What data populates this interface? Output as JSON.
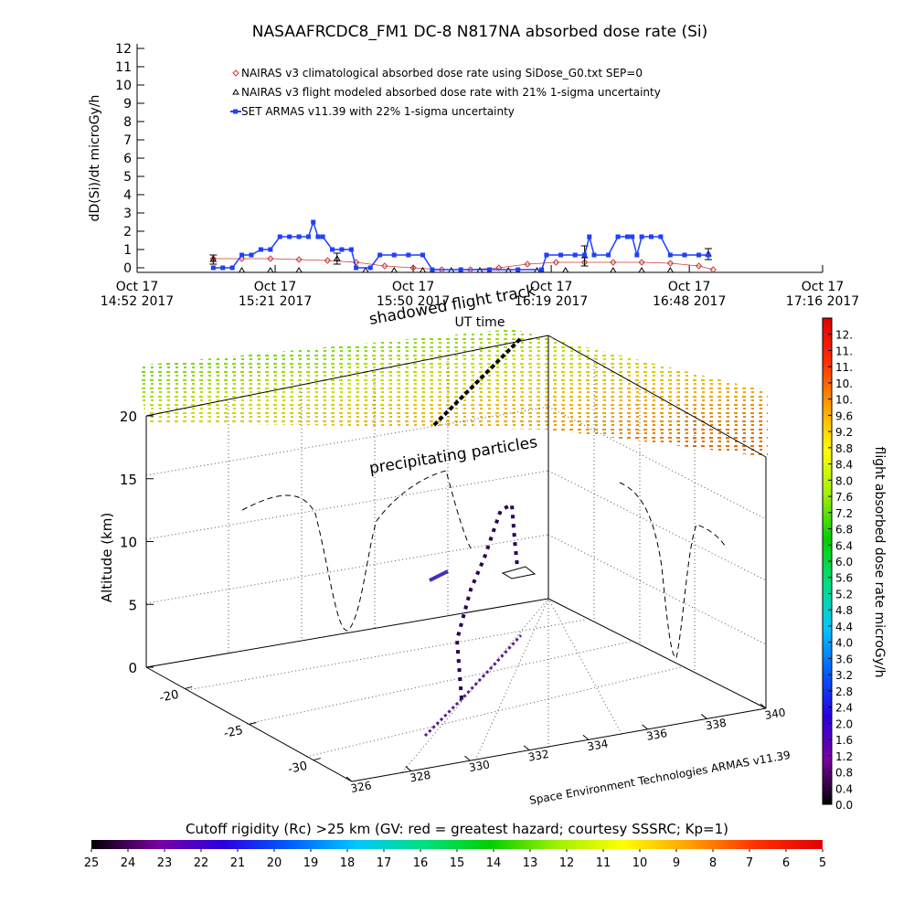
{
  "chart_data": [
    {
      "type": "line",
      "title": "NASAAFRCDC8_FM1 DC-8   N817NA absorbed dose rate (Si)",
      "ylabel": "dD(Si)/dt microGy/h",
      "xlabel": "UT time",
      "xlim": [
        "14:52",
        "17:16"
      ],
      "xticks": [
        {
          "value": "14:52",
          "label": "Oct 17\n14:52 2017"
        },
        {
          "value": "15:21",
          "label": "Oct 17\n15:21 2017"
        },
        {
          "value": "15:50",
          "label": "Oct 17\n15:50 2017"
        },
        {
          "value": "16:19",
          "label": "Oct 17\n16:19 2017"
        },
        {
          "value": "16:48",
          "label": "Oct 17\n16:48 2017"
        },
        {
          "value": "17:16",
          "label": "Oct 17\n17:16 2017"
        }
      ],
      "ylim": [
        -0.25,
        12.25
      ],
      "yticks": [
        0,
        1,
        2,
        3,
        4,
        5,
        6,
        7,
        8,
        9,
        10,
        11,
        12
      ],
      "series": [
        {
          "name": "NAIRAS v3 climatological absorbed dose rate using SiDose_G0.txt SEP=0",
          "color": "#c83c3c",
          "marker": "diamond",
          "line": true,
          "x": [
            "15:08",
            "15:14",
            "15:20",
            "15:26",
            "15:32",
            "15:38",
            "15:44",
            "15:50",
            "15:56",
            "16:02",
            "16:08",
            "16:14",
            "16:20",
            "16:26",
            "16:32",
            "16:38",
            "16:44",
            "16:50",
            "16:53"
          ],
          "values": [
            0.5,
            0.5,
            0.5,
            0.45,
            0.4,
            0.3,
            0.1,
            0,
            -0.1,
            -0.1,
            0,
            0.2,
            0.3,
            0.3,
            0.3,
            0.3,
            0.25,
            0.1,
            -0.1
          ]
        },
        {
          "name": "NAIRAS v3 flight modeled absorbed dose rate with 21% 1-sigma uncertainty",
          "color": "#000000",
          "marker": "triangle",
          "line": false,
          "x": [
            "15:08",
            "15:14",
            "15:20",
            "15:26",
            "15:34",
            "15:40",
            "15:46",
            "15:52",
            "15:58",
            "16:04",
            "16:10",
            "16:16",
            "16:22",
            "16:26",
            "16:32",
            "16:38",
            "16:44",
            "16:52"
          ],
          "values": [
            0.45,
            -0.15,
            -0.15,
            -0.15,
            0.5,
            -0.15,
            -0.15,
            -0.15,
            -0.15,
            -0.15,
            -0.15,
            -0.15,
            -0.15,
            0.65,
            -0.15,
            -0.15,
            -0.15,
            0.75
          ],
          "errors": [
            0.25,
            null,
            null,
            null,
            0.3,
            null,
            null,
            null,
            null,
            null,
            null,
            null,
            null,
            0.55,
            null,
            null,
            null,
            0.3
          ]
        },
        {
          "name": "SET ARMAS v11.39 with 22% 1-sigma uncertainty",
          "color": "#1f3fff",
          "marker": "square",
          "line": true,
          "x": [
            "15:08",
            "15:10",
            "15:12",
            "15:14",
            "15:16",
            "15:18",
            "15:20",
            "15:22",
            "15:24",
            "15:26",
            "15:28",
            "15:29",
            "15:30",
            "15:31",
            "15:33",
            "15:35",
            "15:37",
            "15:38",
            "15:41",
            "15:43",
            "15:46",
            "15:49",
            "15:52",
            "15:54",
            "16:00",
            "16:06",
            "16:12",
            "16:17",
            "16:18",
            "16:21",
            "16:24",
            "16:26",
            "16:27",
            "16:28",
            "16:31",
            "16:33",
            "16:35",
            "16:36",
            "16:37",
            "16:38",
            "16:40",
            "16:42",
            "16:44",
            "16:47",
            "16:50",
            "16:52"
          ],
          "values": [
            0,
            0,
            0,
            0.7,
            0.7,
            1.0,
            1.0,
            1.7,
            1.7,
            1.7,
            1.7,
            2.5,
            1.7,
            1.7,
            1.0,
            1.0,
            1.0,
            0,
            0,
            0.7,
            0.7,
            0.7,
            0.7,
            -0.1,
            -0.1,
            -0.1,
            -0.1,
            -0.1,
            0.7,
            0.7,
            0.7,
            0.7,
            1.7,
            0.7,
            0.7,
            1.7,
            1.7,
            1.7,
            0.7,
            1.7,
            1.7,
            1.7,
            0.7,
            0.7,
            0.7,
            0.7
          ]
        }
      ]
    },
    {
      "type": "surface3d",
      "zlabel": "Altitude (km)",
      "zlim": [
        0,
        20
      ],
      "zticks": [
        0,
        5,
        10,
        15,
        20
      ],
      "ylim": [
        -17,
        -33
      ],
      "yticks": [
        -20,
        -25,
        -30
      ],
      "xlim": [
        326,
        340
      ],
      "xticks": [
        326,
        328,
        330,
        332,
        334,
        336,
        338,
        340
      ],
      "annotations": [
        "shadowed flight track",
        "precipitating particles"
      ],
      "credit": "Space Environment Technologies ARMAS v11.39"
    },
    {
      "type": "colorbar",
      "orientation": "vertical",
      "label": "flight absorbed dose rate microGy/h",
      "ylim": [
        0,
        12
      ],
      "yticks": [
        {
          "value": 0.0,
          "label": "0.0"
        },
        0.4,
        0.8,
        1.2,
        1.6,
        {
          "value": 2.0,
          "label": "2.0"
        },
        2.4,
        2.8,
        3.2,
        3.6,
        {
          "value": 4.0,
          "label": "4.0"
        },
        4.4,
        4.8,
        5.2,
        5.6,
        {
          "value": 6.0,
          "label": "6.0"
        },
        6.4,
        6.8,
        7.2,
        7.6,
        {
          "value": 8.0,
          "label": "8.0"
        },
        8.4,
        8.8,
        9.2,
        9.6,
        {
          "value": 10.0,
          "label": "10."
        },
        {
          "value": 10.4,
          "label": "10."
        },
        {
          "value": 10.8,
          "label": "11."
        },
        {
          "value": 11.2,
          "label": "11."
        },
        {
          "value": 11.6,
          "label": "12."
        }
      ],
      "colors": [
        "#000000",
        "#7a00a0",
        "#2a00e0",
        "#0060ff",
        "#00c8ff",
        "#00e080",
        "#00d000",
        "#a0f000",
        "#ffff00",
        "#ffa000",
        "#ff3000",
        "#e00000"
      ]
    },
    {
      "type": "colorbar",
      "orientation": "horizontal",
      "title": "Cutoff rigidity (Rc) >25 km (GV: red = greatest hazard; courtesy SSSRC; Kp=1)",
      "xlim": [
        25,
        5
      ],
      "xticks": [
        25,
        24,
        23,
        22,
        21,
        20,
        19,
        18,
        17,
        16,
        15,
        14,
        13,
        12,
        11,
        10,
        9,
        8,
        7,
        6,
        5
      ],
      "colors": [
        "#000000",
        "#7a00a0",
        "#2a00e0",
        "#0060ff",
        "#00c8ff",
        "#00e080",
        "#00d000",
        "#a0f000",
        "#ffff00",
        "#ffa000",
        "#ff3000",
        "#e00000"
      ]
    }
  ]
}
